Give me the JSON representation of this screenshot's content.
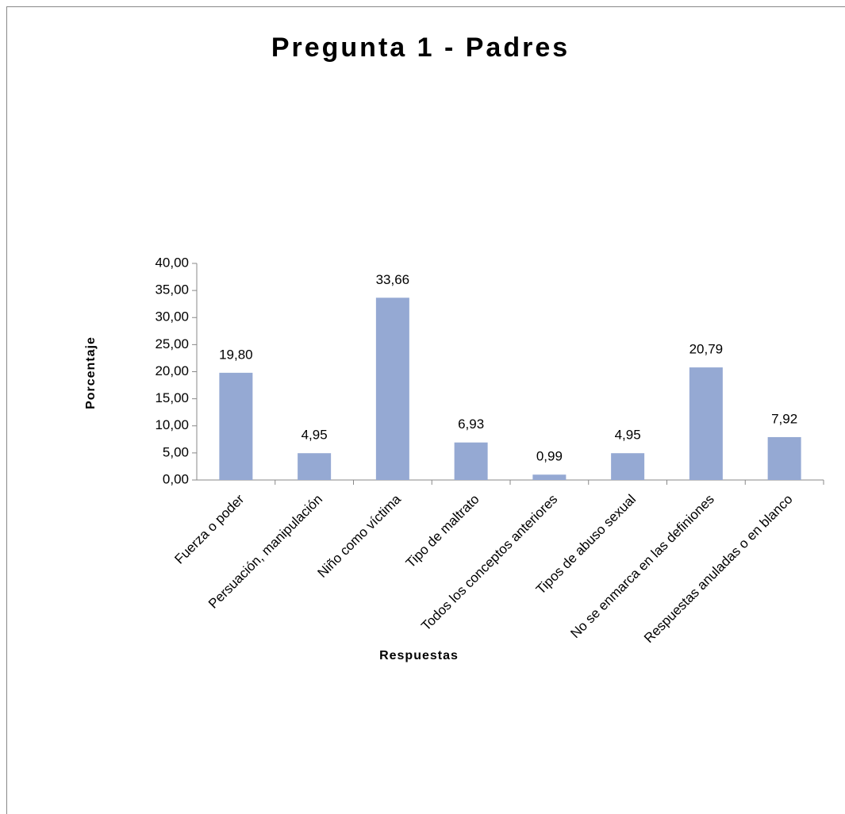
{
  "chart_data": {
    "type": "bar",
    "title": "Pregunta 1 - Padres",
    "x_label": "Respuestas",
    "y_label": "Porcentaje",
    "categories": [
      "Fuerza o poder",
      "Persuación, manipulación",
      "Niño como víctima",
      "Tipo de maltrato",
      "Todos los conceptos anteriores",
      "Tipos de abuso sexual",
      "No se enmarca en las definiones",
      "Respuestas anuladas o en blanco"
    ],
    "values": [
      19.8,
      4.95,
      33.66,
      6.93,
      0.99,
      4.95,
      20.79,
      7.92
    ],
    "value_labels": [
      "19,80",
      "4,95",
      "33,66",
      "6,93",
      "0,99",
      "4,95",
      "20,79",
      "7,92"
    ],
    "color": "#95a9d3",
    "ylim": [
      0,
      40
    ],
    "yticks": [
      {
        "value": 0,
        "label": "0,00"
      },
      {
        "value": 5,
        "label": "5,00"
      },
      {
        "value": 10,
        "label": "10,00"
      },
      {
        "value": 15,
        "label": "15,00"
      },
      {
        "value": 20,
        "label": "20,00"
      },
      {
        "value": 25,
        "label": "25,00"
      },
      {
        "value": 30,
        "label": "30,00"
      },
      {
        "value": 35,
        "label": "35,00"
      },
      {
        "value": 40,
        "label": "40,00"
      }
    ],
    "grid": false
  }
}
